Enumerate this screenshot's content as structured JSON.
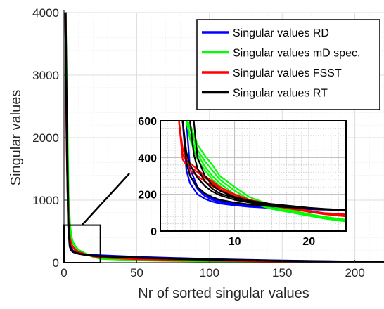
{
  "chart_data": [
    {
      "type": "line",
      "role": "main",
      "xlabel": "Nr of sorted singular values",
      "ylabel": "Singular values",
      "xlim": [
        0,
        220
      ],
      "ylim": [
        0,
        4000
      ],
      "x_ticks": [
        0,
        50,
        100,
        150,
        200
      ],
      "y_ticks": [
        0,
        1000,
        2000,
        3000,
        4000
      ],
      "grid": true,
      "minor_grid": true,
      "legend_position": "top-right",
      "zoom_box": {
        "x": [
          0,
          25
        ],
        "y": [
          0,
          600
        ]
      },
      "series": [
        {
          "name": "Singular values RD",
          "color": "#0000ff",
          "x": [
            1,
            2,
            3,
            4,
            5,
            6,
            8,
            10,
            15,
            20,
            25,
            50,
            100,
            150,
            200,
            220
          ],
          "values": [
            4000,
            1900,
            700,
            320,
            230,
            190,
            165,
            150,
            132,
            120,
            115,
            90,
            55,
            30,
            14,
            10
          ]
        },
        {
          "name": "Singular values mD spec.",
          "color": "#00ff00",
          "x": [
            1,
            2,
            3,
            4,
            5,
            6,
            8,
            10,
            15,
            20,
            25,
            50,
            100,
            150,
            200,
            220
          ],
          "values": [
            4000,
            2600,
            1100,
            600,
            420,
            330,
            250,
            200,
            140,
            95,
            65,
            40,
            20,
            10,
            5,
            3
          ]
        },
        {
          "name": "Singular values FSST",
          "color": "#ff0000",
          "x": [
            1,
            2,
            3,
            4,
            5,
            6,
            8,
            10,
            15,
            20,
            25,
            50,
            100,
            150,
            200,
            220
          ],
          "values": [
            4000,
            1800,
            650,
            380,
            300,
            250,
            200,
            170,
            130,
            105,
            85,
            60,
            35,
            20,
            10,
            7
          ]
        },
        {
          "name": "Singular values RT",
          "color": "#000000",
          "x": [
            1,
            2,
            3,
            4,
            5,
            6,
            8,
            10,
            15,
            20,
            25,
            50,
            100,
            150,
            200,
            220
          ],
          "values": [
            4000,
            2000,
            600,
            260,
            200,
            175,
            160,
            145,
            125,
            112,
            105,
            80,
            50,
            28,
            12,
            9
          ]
        }
      ]
    },
    {
      "type": "line",
      "role": "inset",
      "xlim": [
        0,
        25
      ],
      "ylim": [
        0,
        600
      ],
      "x_ticks": [
        10,
        20
      ],
      "y_ticks": [
        0,
        200,
        400,
        600
      ],
      "grid": true,
      "minor_grid": true,
      "series": [
        {
          "color": "#0000ff",
          "x": [
            3,
            3.5,
            4,
            5,
            6,
            7,
            8,
            10,
            12,
            15,
            18,
            20,
            22,
            25
          ],
          "values": [
            600,
            330,
            260,
            200,
            175,
            160,
            150,
            140,
            132,
            125,
            120,
            118,
            116,
            115
          ]
        },
        {
          "color": "#0000ff",
          "x": [
            3,
            3.5,
            4,
            5,
            6,
            7,
            8,
            10,
            12,
            15,
            18,
            20,
            22,
            25
          ],
          "values": [
            600,
            400,
            300,
            230,
            190,
            170,
            158,
            145,
            135,
            127,
            122,
            120,
            118,
            116
          ]
        },
        {
          "color": "#0000ff",
          "x": [
            3.5,
            4,
            5,
            6,
            7,
            8,
            10,
            12,
            15,
            18,
            20,
            22,
            25
          ],
          "values": [
            600,
            340,
            240,
            200,
            178,
            163,
            148,
            138,
            130,
            124,
            121,
            119,
            117
          ]
        },
        {
          "color": "#00ff00",
          "x": [
            3.5,
            4,
            5,
            6,
            7,
            8,
            10,
            12,
            15,
            18,
            20,
            22,
            25
          ],
          "values": [
            600,
            560,
            440,
            380,
            330,
            280,
            220,
            170,
            135,
            105,
            90,
            75,
            60
          ]
        },
        {
          "color": "#00ff00",
          "x": [
            3.5,
            4,
            5,
            6,
            7,
            8,
            10,
            12,
            15,
            18,
            20,
            22,
            25
          ],
          "values": [
            600,
            520,
            420,
            350,
            300,
            260,
            200,
            160,
            125,
            100,
            85,
            70,
            55
          ]
        },
        {
          "color": "#00ff00",
          "x": [
            3.5,
            4,
            5,
            6,
            7,
            8,
            10,
            12,
            15,
            18,
            20,
            22,
            25
          ],
          "values": [
            600,
            580,
            470,
            410,
            360,
            300,
            240,
            185,
            140,
            110,
            92,
            78,
            62
          ]
        },
        {
          "color": "#00ff00",
          "x": [
            3.5,
            4,
            5,
            6,
            7,
            8,
            10,
            12,
            15,
            18,
            20,
            22,
            25
          ],
          "values": [
            600,
            500,
            390,
            330,
            280,
            245,
            190,
            155,
            120,
            98,
            83,
            68,
            52
          ]
        },
        {
          "color": "#ff0000",
          "x": [
            2.5,
            3,
            3.5,
            4,
            5,
            6,
            7,
            8,
            10,
            12,
            15,
            18,
            20,
            22,
            25
          ],
          "values": [
            600,
            420,
            380,
            350,
            320,
            290,
            260,
            230,
            190,
            165,
            140,
            120,
            105,
            95,
            85
          ]
        },
        {
          "color": "#ff0000",
          "x": [
            2.5,
            3,
            3.5,
            4,
            5,
            6,
            7,
            8,
            10,
            12,
            15,
            18,
            20,
            22,
            25
          ],
          "values": [
            600,
            390,
            360,
            330,
            300,
            270,
            245,
            220,
            185,
            160,
            138,
            118,
            104,
            92,
            80
          ]
        },
        {
          "color": "#ff0000",
          "x": [
            2.5,
            3,
            3.5,
            4,
            5,
            6,
            7,
            8,
            10,
            12,
            15,
            18,
            20,
            22,
            25
          ],
          "values": [
            600,
            450,
            400,
            370,
            335,
            300,
            270,
            240,
            200,
            170,
            145,
            125,
            110,
            98,
            90
          ]
        },
        {
          "color": "#000000",
          "x": [
            3,
            3.5,
            4,
            5,
            6,
            7,
            8,
            10,
            12,
            15,
            18,
            20,
            22,
            25
          ],
          "values": [
            600,
            370,
            300,
            240,
            205,
            185,
            170,
            155,
            145,
            135,
            128,
            122,
            118,
            112
          ]
        },
        {
          "color": "#000000",
          "x": [
            3,
            3.5,
            4,
            5,
            6,
            7,
            8,
            10,
            12,
            15,
            18,
            20,
            22,
            25
          ],
          "values": [
            600,
            430,
            360,
            290,
            245,
            215,
            195,
            170,
            155,
            140,
            130,
            124,
            118,
            110
          ]
        },
        {
          "color": "#000000",
          "x": [
            4,
            4.5,
            5,
            6,
            7,
            8,
            10,
            12,
            15,
            18,
            20,
            22,
            25
          ],
          "values": [
            600,
            420,
            340,
            270,
            230,
            205,
            180,
            160,
            142,
            132,
            125,
            119,
            113
          ]
        },
        {
          "color": "#000000",
          "x": [
            4.5,
            5,
            6,
            7,
            8,
            10,
            12,
            15,
            18,
            20,
            22,
            25
          ],
          "values": [
            600,
            400,
            300,
            250,
            220,
            185,
            165,
            147,
            135,
            127,
            121,
            114
          ]
        }
      ]
    }
  ]
}
